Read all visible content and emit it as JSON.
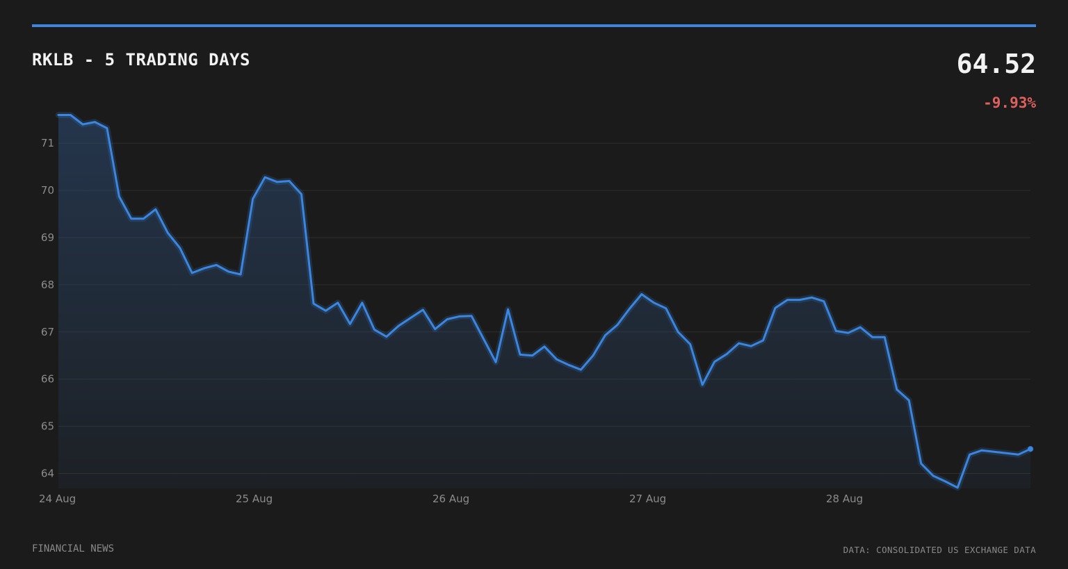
{
  "header": {
    "title": "RKLB - 5 TRADING DAYS",
    "price": "64.52",
    "change": "-9.93%"
  },
  "footer": {
    "left": "FINANCIAL NEWS",
    "right": "DATA: CONSOLIDATED US EXCHANGE DATA"
  },
  "colors": {
    "accent": "#3a86e0",
    "negative": "#e0605e",
    "background": "#1b1b1b"
  },
  "chart_data": {
    "type": "area",
    "title": "RKLB - 5 TRADING DAYS",
    "xlabel": "",
    "ylabel": "",
    "x_tick_labels": [
      "24 Aug",
      "25 Aug",
      "26 Aug",
      "27 Aug",
      "28 Aug"
    ],
    "y_ticks": [
      64,
      65,
      66,
      67,
      68,
      69,
      70,
      71
    ],
    "ylim": [
      63.6,
      71.6
    ],
    "grid": true,
    "legend": "none",
    "series": [
      {
        "values": [
          71.6,
          71.6,
          71.4,
          71.45,
          71.32,
          69.87,
          69.4,
          69.4,
          69.6,
          69.1,
          68.78,
          68.25,
          68.35,
          68.42,
          68.28,
          68.22,
          69.82,
          70.28,
          70.18,
          70.2,
          69.92,
          67.6,
          67.45,
          67.62,
          67.17,
          67.62,
          67.05,
          66.9,
          67.13,
          67.3,
          67.47,
          67.06,
          67.27,
          67.33,
          67.34,
          66.85,
          66.36,
          67.48,
          66.52,
          66.5,
          66.69,
          66.42,
          66.3,
          66.2,
          66.5,
          66.93,
          67.15,
          67.49,
          67.8,
          67.62,
          67.5,
          67.0,
          66.74,
          65.88,
          66.37,
          66.53,
          66.76,
          66.7,
          66.82,
          67.51,
          67.68,
          67.68,
          67.73,
          67.65,
          67.02,
          66.98,
          67.1,
          66.89,
          66.89,
          65.78,
          65.55,
          64.21,
          63.95,
          63.83,
          63.7,
          64.4,
          64.49,
          64.46,
          64.43,
          64.4,
          64.52
        ]
      }
    ]
  }
}
